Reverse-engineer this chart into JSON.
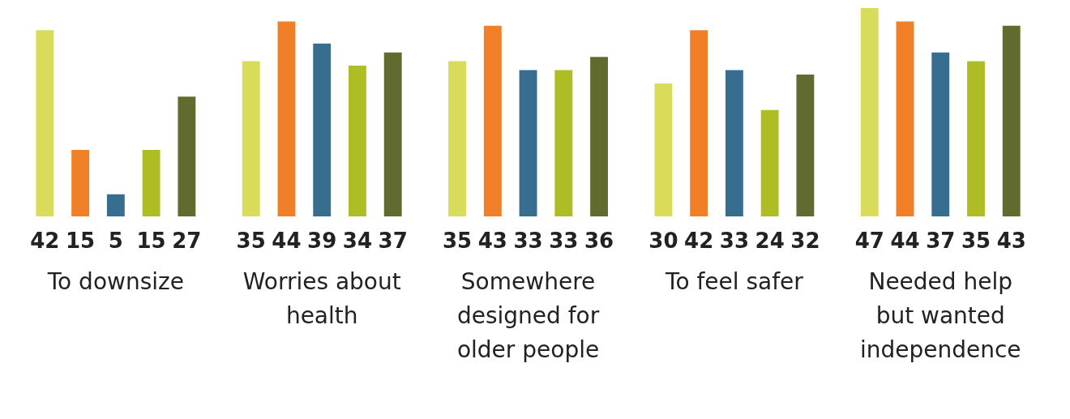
{
  "chart_data": {
    "type": "bar",
    "categories": [
      "To downsize",
      "Worries about health",
      "Somewhere designed for older people",
      "To feel safer",
      "Needed help but wanted independence"
    ],
    "series": [
      {
        "color": "#d9dc5a",
        "values": [
          42,
          35,
          35,
          30,
          47
        ]
      },
      {
        "color": "#f07f27",
        "values": [
          15,
          44,
          43,
          42,
          44
        ]
      },
      {
        "color": "#376e8f",
        "values": [
          5,
          39,
          33,
          33,
          37
        ]
      },
      {
        "color": "#aebd23",
        "values": [
          15,
          34,
          33,
          24,
          35
        ]
      },
      {
        "color": "#616b30",
        "values": [
          27,
          37,
          36,
          32,
          43
        ]
      }
    ],
    "data_labels": true,
    "grid": false,
    "legend": false
  }
}
